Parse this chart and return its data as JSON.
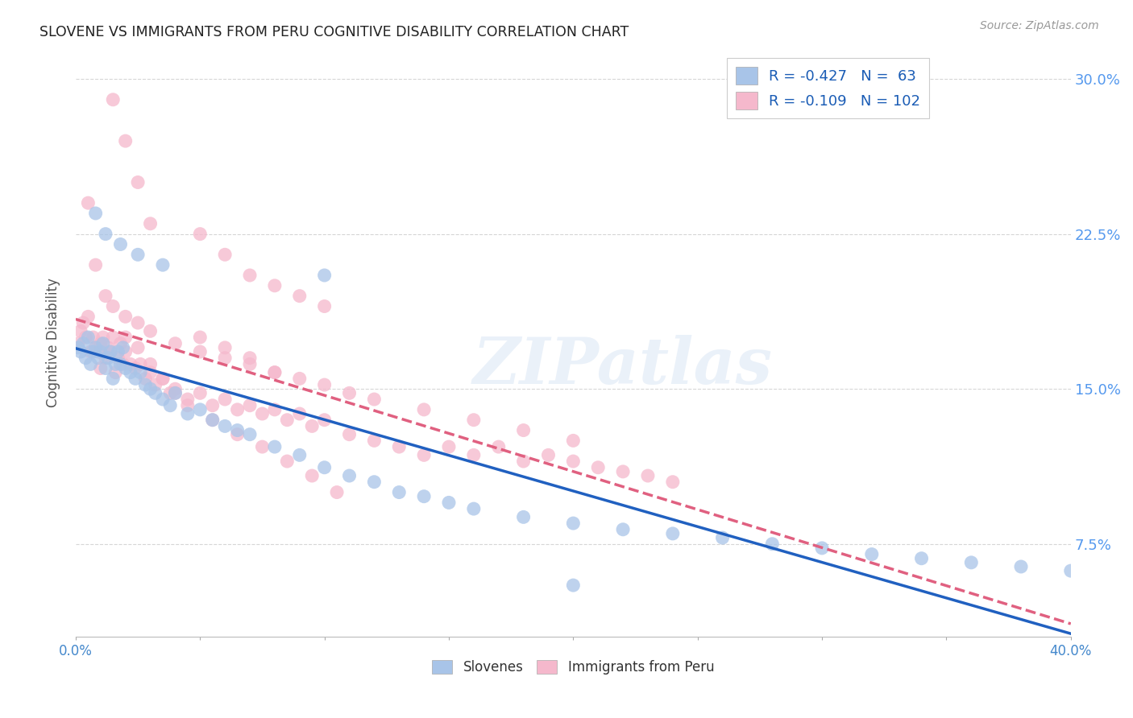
{
  "title": "SLOVENE VS IMMIGRANTS FROM PERU COGNITIVE DISABILITY CORRELATION CHART",
  "source": "Source: ZipAtlas.com",
  "ylabel": "Cognitive Disability",
  "ytick_labels": [
    "7.5%",
    "15.0%",
    "22.5%",
    "30.0%"
  ],
  "ytick_values": [
    0.075,
    0.15,
    0.225,
    0.3
  ],
  "xlim": [
    0.0,
    0.4
  ],
  "ylim": [
    0.03,
    0.315
  ],
  "legend_r1": "R = -0.427",
  "legend_n1": "N =  63",
  "legend_r2": "R = -0.109",
  "legend_n2": "N = 102",
  "color_slovene": "#a8c4e8",
  "color_peru": "#f5b8cc",
  "color_line_slovene": "#2060c0",
  "color_line_peru": "#e06080",
  "color_axis_right": "#5599ee",
  "watermark": "ZIPatlas",
  "slovene_x": [
    0.001,
    0.002,
    0.003,
    0.004,
    0.005,
    0.006,
    0.007,
    0.008,
    0.009,
    0.01,
    0.011,
    0.012,
    0.013,
    0.014,
    0.015,
    0.016,
    0.017,
    0.018,
    0.019,
    0.02,
    0.022,
    0.024,
    0.026,
    0.028,
    0.03,
    0.032,
    0.035,
    0.038,
    0.04,
    0.045,
    0.05,
    0.055,
    0.06,
    0.065,
    0.07,
    0.08,
    0.09,
    0.1,
    0.11,
    0.12,
    0.13,
    0.14,
    0.15,
    0.16,
    0.18,
    0.2,
    0.22,
    0.24,
    0.26,
    0.28,
    0.3,
    0.32,
    0.34,
    0.36,
    0.38,
    0.4,
    0.008,
    0.012,
    0.018,
    0.025,
    0.035,
    0.1,
    0.2
  ],
  "slovene_y": [
    0.17,
    0.168,
    0.172,
    0.165,
    0.175,
    0.162,
    0.168,
    0.17,
    0.165,
    0.168,
    0.172,
    0.16,
    0.165,
    0.168,
    0.155,
    0.162,
    0.168,
    0.162,
    0.17,
    0.16,
    0.158,
    0.155,
    0.158,
    0.152,
    0.15,
    0.148,
    0.145,
    0.142,
    0.148,
    0.138,
    0.14,
    0.135,
    0.132,
    0.13,
    0.128,
    0.122,
    0.118,
    0.112,
    0.108,
    0.105,
    0.1,
    0.098,
    0.095,
    0.092,
    0.088,
    0.085,
    0.082,
    0.08,
    0.078,
    0.075,
    0.073,
    0.07,
    0.068,
    0.066,
    0.064,
    0.062,
    0.235,
    0.225,
    0.22,
    0.215,
    0.21,
    0.205,
    0.055
  ],
  "peru_x": [
    0.001,
    0.002,
    0.003,
    0.004,
    0.005,
    0.006,
    0.007,
    0.008,
    0.009,
    0.01,
    0.011,
    0.012,
    0.013,
    0.014,
    0.015,
    0.016,
    0.017,
    0.018,
    0.019,
    0.02,
    0.022,
    0.024,
    0.026,
    0.028,
    0.03,
    0.032,
    0.035,
    0.038,
    0.04,
    0.045,
    0.05,
    0.055,
    0.06,
    0.065,
    0.07,
    0.075,
    0.08,
    0.085,
    0.09,
    0.095,
    0.1,
    0.11,
    0.12,
    0.13,
    0.14,
    0.15,
    0.16,
    0.17,
    0.18,
    0.19,
    0.2,
    0.21,
    0.22,
    0.23,
    0.24,
    0.005,
    0.008,
    0.012,
    0.015,
    0.02,
    0.025,
    0.03,
    0.04,
    0.05,
    0.06,
    0.07,
    0.08,
    0.09,
    0.1,
    0.11,
    0.05,
    0.06,
    0.07,
    0.08,
    0.09,
    0.1,
    0.05,
    0.06,
    0.07,
    0.08,
    0.12,
    0.14,
    0.16,
    0.18,
    0.2,
    0.02,
    0.025,
    0.03,
    0.035,
    0.04,
    0.045,
    0.055,
    0.065,
    0.075,
    0.085,
    0.01,
    0.015,
    0.02,
    0.025,
    0.03,
    0.095,
    0.105
  ],
  "peru_y": [
    0.172,
    0.178,
    0.182,
    0.175,
    0.185,
    0.168,
    0.175,
    0.17,
    0.168,
    0.172,
    0.175,
    0.165,
    0.17,
    0.168,
    0.175,
    0.158,
    0.165,
    0.172,
    0.162,
    0.168,
    0.162,
    0.16,
    0.162,
    0.155,
    0.158,
    0.152,
    0.155,
    0.148,
    0.15,
    0.145,
    0.148,
    0.142,
    0.145,
    0.14,
    0.142,
    0.138,
    0.14,
    0.135,
    0.138,
    0.132,
    0.135,
    0.128,
    0.125,
    0.122,
    0.118,
    0.122,
    0.118,
    0.122,
    0.115,
    0.118,
    0.115,
    0.112,
    0.11,
    0.108,
    0.105,
    0.24,
    0.21,
    0.195,
    0.19,
    0.185,
    0.182,
    0.178,
    0.172,
    0.168,
    0.165,
    0.162,
    0.158,
    0.155,
    0.152,
    0.148,
    0.225,
    0.215,
    0.205,
    0.2,
    0.195,
    0.19,
    0.175,
    0.17,
    0.165,
    0.158,
    0.145,
    0.14,
    0.135,
    0.13,
    0.125,
    0.175,
    0.17,
    0.162,
    0.155,
    0.148,
    0.142,
    0.135,
    0.128,
    0.122,
    0.115,
    0.16,
    0.29,
    0.27,
    0.25,
    0.23,
    0.108,
    0.1
  ]
}
